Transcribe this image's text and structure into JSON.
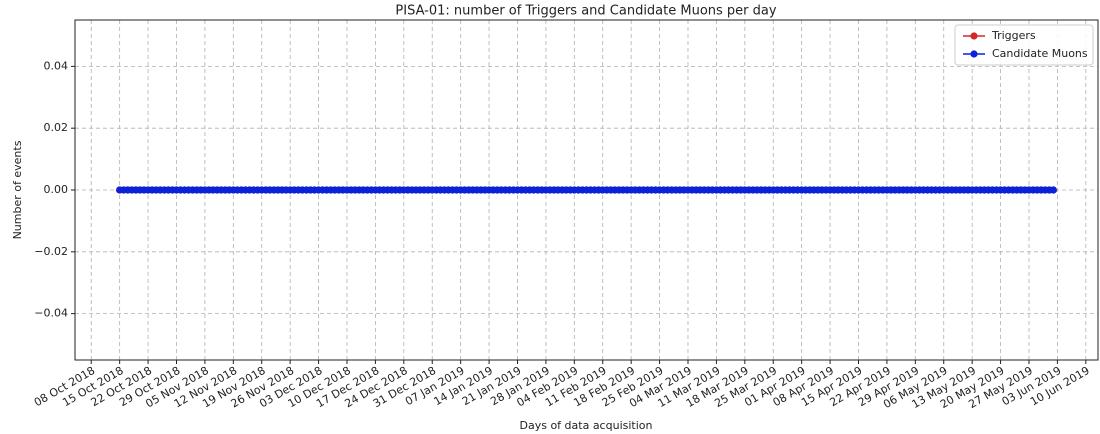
{
  "chart_data": {
    "type": "line",
    "title": "PISA-01: number of Triggers and Candidate Muons per day",
    "xlabel": "Days of data acquisition",
    "ylabel": "Number of events",
    "x": [
      "2018-10-15",
      "2018-10-16",
      "2018-10-17",
      "2018-10-18",
      "2018-10-19",
      "2018-10-20",
      "2018-10-21",
      "2018-10-22",
      "2018-10-23",
      "2018-10-24",
      "2018-10-25",
      "2018-10-26",
      "2018-10-27",
      "2018-10-28",
      "2018-10-29",
      "2018-10-30",
      "2018-10-31",
      "2018-11-01",
      "2018-11-02",
      "2018-11-03",
      "2018-11-04",
      "2018-11-05",
      "2018-11-06",
      "2018-11-07",
      "2018-11-08",
      "2018-11-09",
      "2018-11-10",
      "2018-11-11",
      "2018-11-12",
      "2018-11-13",
      "2018-11-14",
      "2018-11-15",
      "2018-11-16",
      "2018-11-17",
      "2018-11-18",
      "2018-11-19",
      "2018-11-20",
      "2018-11-21",
      "2018-11-22",
      "2018-11-23",
      "2018-11-24",
      "2018-11-25",
      "2018-11-26",
      "2018-11-27",
      "2018-11-28",
      "2018-11-29",
      "2018-11-30",
      "2018-12-01",
      "2018-12-02",
      "2018-12-03",
      "2018-12-04",
      "2018-12-05",
      "2018-12-06",
      "2018-12-07",
      "2018-12-08",
      "2018-12-09",
      "2018-12-10",
      "2018-12-11",
      "2018-12-12",
      "2018-12-13",
      "2018-12-14",
      "2018-12-15",
      "2018-12-16",
      "2018-12-17",
      "2018-12-18",
      "2018-12-19",
      "2018-12-20",
      "2018-12-21",
      "2018-12-22",
      "2018-12-23",
      "2018-12-24",
      "2018-12-25",
      "2018-12-26",
      "2018-12-27",
      "2018-12-28",
      "2018-12-29",
      "2018-12-30",
      "2018-12-31",
      "2019-01-01",
      "2019-01-02",
      "2019-01-03",
      "2019-01-04",
      "2019-01-05",
      "2019-01-06",
      "2019-01-07",
      "2019-01-08",
      "2019-01-09",
      "2019-01-10",
      "2019-01-11",
      "2019-01-12",
      "2019-01-13",
      "2019-01-14",
      "2019-01-15",
      "2019-01-16",
      "2019-01-17",
      "2019-01-18",
      "2019-01-19",
      "2019-01-20",
      "2019-01-21",
      "2019-01-22",
      "2019-01-23",
      "2019-01-24",
      "2019-01-25",
      "2019-01-26",
      "2019-01-27",
      "2019-01-28",
      "2019-01-29",
      "2019-01-30",
      "2019-01-31",
      "2019-02-01",
      "2019-02-02",
      "2019-02-03",
      "2019-02-04",
      "2019-02-05",
      "2019-02-06",
      "2019-02-07",
      "2019-02-08",
      "2019-02-09",
      "2019-02-10",
      "2019-02-11",
      "2019-02-12",
      "2019-02-13",
      "2019-02-14",
      "2019-02-15",
      "2019-02-16",
      "2019-02-17",
      "2019-02-18",
      "2019-02-19",
      "2019-02-20",
      "2019-02-21",
      "2019-02-22",
      "2019-02-23",
      "2019-02-24",
      "2019-02-25",
      "2019-02-26",
      "2019-02-27",
      "2019-02-28",
      "2019-03-01",
      "2019-03-02",
      "2019-03-03",
      "2019-03-04",
      "2019-03-05",
      "2019-03-06",
      "2019-03-07",
      "2019-03-08",
      "2019-03-09",
      "2019-03-10",
      "2019-03-11",
      "2019-03-12",
      "2019-03-13",
      "2019-03-14",
      "2019-03-15",
      "2019-03-16",
      "2019-03-17",
      "2019-03-18",
      "2019-03-19",
      "2019-03-20",
      "2019-03-21",
      "2019-03-22",
      "2019-03-23",
      "2019-03-24",
      "2019-03-25",
      "2019-03-26",
      "2019-03-27",
      "2019-03-28",
      "2019-03-29",
      "2019-03-30",
      "2019-03-31",
      "2019-04-01",
      "2019-04-02",
      "2019-04-03",
      "2019-04-04",
      "2019-04-05",
      "2019-04-06",
      "2019-04-07",
      "2019-04-08",
      "2019-04-09",
      "2019-04-10",
      "2019-04-11",
      "2019-04-12",
      "2019-04-13",
      "2019-04-14",
      "2019-04-15",
      "2019-04-16",
      "2019-04-17",
      "2019-04-18",
      "2019-04-19",
      "2019-04-20",
      "2019-04-21",
      "2019-04-22",
      "2019-04-23",
      "2019-04-24",
      "2019-04-25",
      "2019-04-26",
      "2019-04-27",
      "2019-04-28",
      "2019-04-29",
      "2019-04-30",
      "2019-05-01",
      "2019-05-02",
      "2019-05-03",
      "2019-05-04",
      "2019-05-05",
      "2019-05-06",
      "2019-05-07",
      "2019-05-08",
      "2019-05-09",
      "2019-05-10",
      "2019-05-11",
      "2019-05-12",
      "2019-05-13",
      "2019-05-14",
      "2019-05-15",
      "2019-05-16",
      "2019-05-17",
      "2019-05-18",
      "2019-05-19",
      "2019-05-20",
      "2019-05-21",
      "2019-05-22",
      "2019-05-23",
      "2019-05-24",
      "2019-05-25",
      "2019-05-26",
      "2019-05-27",
      "2019-05-28",
      "2019-05-29",
      "2019-05-30",
      "2019-05-31",
      "2019-06-01",
      "2019-06-02"
    ],
    "series": [
      {
        "name": "Triggers",
        "color": "#d62728",
        "values": [
          0,
          0,
          0,
          0,
          0,
          0,
          0,
          0,
          0,
          0,
          0,
          0,
          0,
          0,
          0,
          0,
          0,
          0,
          0,
          0,
          0,
          0,
          0,
          0,
          0,
          0,
          0,
          0,
          0,
          0,
          0,
          0,
          0,
          0,
          0,
          0,
          0,
          0,
          0,
          0,
          0,
          0,
          0,
          0,
          0,
          0,
          0,
          0,
          0,
          0,
          0,
          0,
          0,
          0,
          0,
          0,
          0,
          0,
          0,
          0,
          0,
          0,
          0,
          0,
          0,
          0,
          0,
          0,
          0,
          0,
          0,
          0,
          0,
          0,
          0,
          0,
          0,
          0,
          0,
          0,
          0,
          0,
          0,
          0,
          0,
          0,
          0,
          0,
          0,
          0,
          0,
          0,
          0,
          0,
          0,
          0,
          0,
          0,
          0,
          0,
          0,
          0,
          0,
          0,
          0,
          0,
          0,
          0,
          0,
          0,
          0,
          0,
          0,
          0,
          0,
          0,
          0,
          0,
          0,
          0,
          0,
          0,
          0,
          0,
          0,
          0,
          0,
          0,
          0,
          0,
          0,
          0,
          0,
          0,
          0,
          0,
          0,
          0,
          0,
          0,
          0,
          0,
          0,
          0,
          0,
          0,
          0,
          0,
          0,
          0,
          0,
          0,
          0,
          0,
          0,
          0,
          0,
          0,
          0,
          0,
          0,
          0,
          0,
          0,
          0,
          0,
          0,
          0,
          0,
          0,
          0,
          0,
          0,
          0,
          0,
          0,
          0,
          0,
          0,
          0,
          0,
          0,
          0,
          0,
          0,
          0,
          0,
          0,
          0,
          0,
          0,
          0,
          0,
          0,
          0,
          0,
          0,
          0,
          0,
          0,
          0,
          0,
          0,
          0,
          0,
          0,
          0,
          0,
          0,
          0,
          0,
          0,
          0,
          0,
          0,
          0,
          0,
          0,
          0,
          0,
          0,
          0,
          0,
          0,
          0,
          0,
          0,
          0,
          0,
          0,
          0
        ]
      },
      {
        "name": "Candidate Muons",
        "color": "#0a22d8",
        "values": [
          0,
          0,
          0,
          0,
          0,
          0,
          0,
          0,
          0,
          0,
          0,
          0,
          0,
          0,
          0,
          0,
          0,
          0,
          0,
          0,
          0,
          0,
          0,
          0,
          0,
          0,
          0,
          0,
          0,
          0,
          0,
          0,
          0,
          0,
          0,
          0,
          0,
          0,
          0,
          0,
          0,
          0,
          0,
          0,
          0,
          0,
          0,
          0,
          0,
          0,
          0,
          0,
          0,
          0,
          0,
          0,
          0,
          0,
          0,
          0,
          0,
          0,
          0,
          0,
          0,
          0,
          0,
          0,
          0,
          0,
          0,
          0,
          0,
          0,
          0,
          0,
          0,
          0,
          0,
          0,
          0,
          0,
          0,
          0,
          0,
          0,
          0,
          0,
          0,
          0,
          0,
          0,
          0,
          0,
          0,
          0,
          0,
          0,
          0,
          0,
          0,
          0,
          0,
          0,
          0,
          0,
          0,
          0,
          0,
          0,
          0,
          0,
          0,
          0,
          0,
          0,
          0,
          0,
          0,
          0,
          0,
          0,
          0,
          0,
          0,
          0,
          0,
          0,
          0,
          0,
          0,
          0,
          0,
          0,
          0,
          0,
          0,
          0,
          0,
          0,
          0,
          0,
          0,
          0,
          0,
          0,
          0,
          0,
          0,
          0,
          0,
          0,
          0,
          0,
          0,
          0,
          0,
          0,
          0,
          0,
          0,
          0,
          0,
          0,
          0,
          0,
          0,
          0,
          0,
          0,
          0,
          0,
          0,
          0,
          0,
          0,
          0,
          0,
          0,
          0,
          0,
          0,
          0,
          0,
          0,
          0,
          0,
          0,
          0,
          0,
          0,
          0,
          0,
          0,
          0,
          0,
          0,
          0,
          0,
          0,
          0,
          0,
          0,
          0,
          0,
          0,
          0,
          0,
          0,
          0,
          0,
          0,
          0,
          0,
          0,
          0,
          0,
          0,
          0,
          0,
          0,
          0,
          0,
          0,
          0,
          0,
          0,
          0,
          0,
          0,
          0
        ]
      }
    ],
    "xlim": [
      "2018-10-04",
      "2019-06-13"
    ],
    "xticks": [
      {
        "value": "2018-10-08",
        "label": "08 Oct 2018"
      },
      {
        "value": "2018-10-15",
        "label": "15 Oct 2018"
      },
      {
        "value": "2018-10-22",
        "label": "22 Oct 2018"
      },
      {
        "value": "2018-10-29",
        "label": "29 Oct 2018"
      },
      {
        "value": "2018-11-05",
        "label": "05 Nov 2018"
      },
      {
        "value": "2018-11-12",
        "label": "12 Nov 2018"
      },
      {
        "value": "2018-11-19",
        "label": "19 Nov 2018"
      },
      {
        "value": "2018-11-26",
        "label": "26 Nov 2018"
      },
      {
        "value": "2018-12-03",
        "label": "03 Dec 2018"
      },
      {
        "value": "2018-12-10",
        "label": "10 Dec 2018"
      },
      {
        "value": "2018-12-17",
        "label": "17 Dec 2018"
      },
      {
        "value": "2018-12-24",
        "label": "24 Dec 2018"
      },
      {
        "value": "2018-12-31",
        "label": "31 Dec 2018"
      },
      {
        "value": "2019-01-07",
        "label": "07 Jan 2019"
      },
      {
        "value": "2019-01-14",
        "label": "14 Jan 2019"
      },
      {
        "value": "2019-01-21",
        "label": "21 Jan 2019"
      },
      {
        "value": "2019-01-28",
        "label": "28 Jan 2019"
      },
      {
        "value": "2019-02-04",
        "label": "04 Feb 2019"
      },
      {
        "value": "2019-02-11",
        "label": "11 Feb 2019"
      },
      {
        "value": "2019-02-18",
        "label": "18 Feb 2019"
      },
      {
        "value": "2019-02-25",
        "label": "25 Feb 2019"
      },
      {
        "value": "2019-03-04",
        "label": "04 Mar 2019"
      },
      {
        "value": "2019-03-11",
        "label": "11 Mar 2019"
      },
      {
        "value": "2019-03-18",
        "label": "18 Mar 2019"
      },
      {
        "value": "2019-03-25",
        "label": "25 Mar 2019"
      },
      {
        "value": "2019-04-01",
        "label": "01 Apr 2019"
      },
      {
        "value": "2019-04-08",
        "label": "08 Apr 2019"
      },
      {
        "value": "2019-04-15",
        "label": "15 Apr 2019"
      },
      {
        "value": "2019-04-22",
        "label": "22 Apr 2019"
      },
      {
        "value": "2019-04-29",
        "label": "29 Apr 2019"
      },
      {
        "value": "2019-05-06",
        "label": "06 May 2019"
      },
      {
        "value": "2019-05-13",
        "label": "13 May 2019"
      },
      {
        "value": "2019-05-20",
        "label": "20 May 2019"
      },
      {
        "value": "2019-05-27",
        "label": "27 May 2019"
      },
      {
        "value": "2019-06-03",
        "label": "03 Jun 2019"
      },
      {
        "value": "2019-06-10",
        "label": "10 Jun 2019"
      }
    ],
    "ylim": [
      -0.055,
      0.055
    ],
    "yticks": [
      {
        "value": -0.04,
        "label": "−0.04"
      },
      {
        "value": -0.02,
        "label": "−0.02"
      },
      {
        "value": 0,
        "label": "0.00"
      },
      {
        "value": 0.02,
        "label": "0.02"
      },
      {
        "value": 0.04,
        "label": "0.04"
      }
    ],
    "grid": true,
    "legend": "upper right"
  }
}
